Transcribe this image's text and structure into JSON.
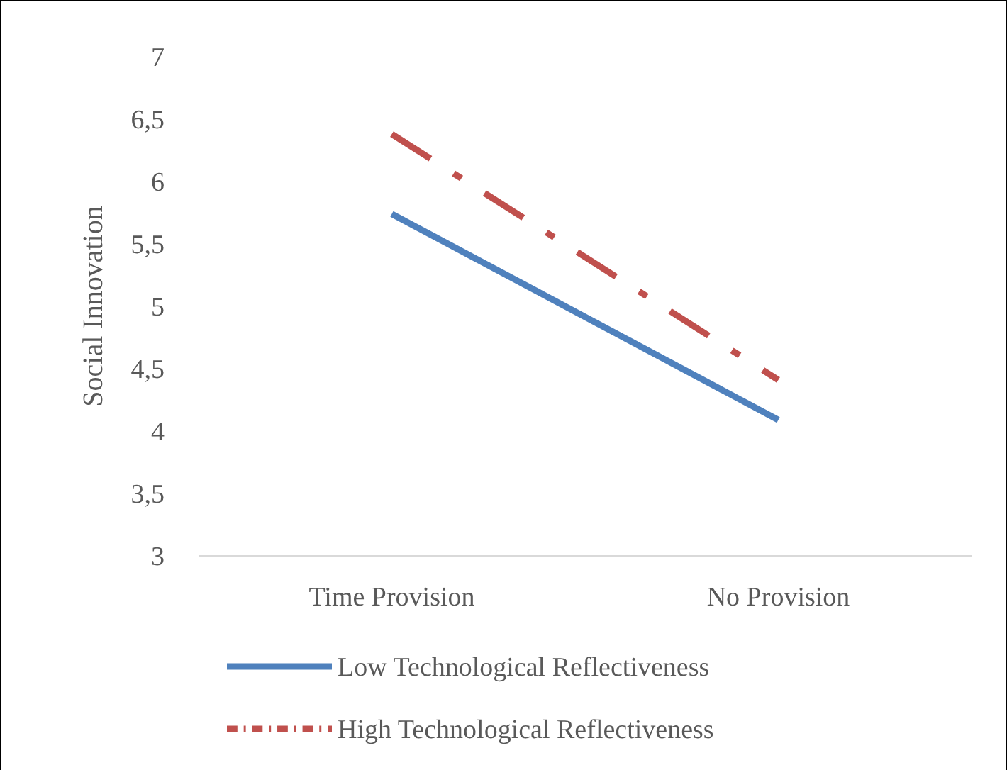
{
  "chart_data": {
    "type": "line",
    "ylabel": "Social Innovation",
    "categories": [
      "Time Provision",
      "No Provision"
    ],
    "series": [
      {
        "name": "Low Technological Reflectiveness",
        "color": "#4f81bd",
        "values": [
          5.74,
          4.09
        ],
        "line_style": "solid"
      },
      {
        "name": "High Technological Reflectiveness",
        "color": "#c0504d",
        "values": [
          6.38,
          4.41
        ],
        "line_style": "dashed"
      }
    ],
    "ylim": [
      3,
      7
    ],
    "yticks": [
      3,
      {
        "value": 3.5,
        "label": "3,5"
      },
      4,
      {
        "value": 4.5,
        "label": "4,5"
      },
      5,
      {
        "value": 5.5,
        "label": "5,5"
      },
      6,
      {
        "value": 6.5,
        "label": "6,5"
      },
      7
    ],
    "grid": false,
    "legend": "bottom",
    "marker": "none"
  }
}
